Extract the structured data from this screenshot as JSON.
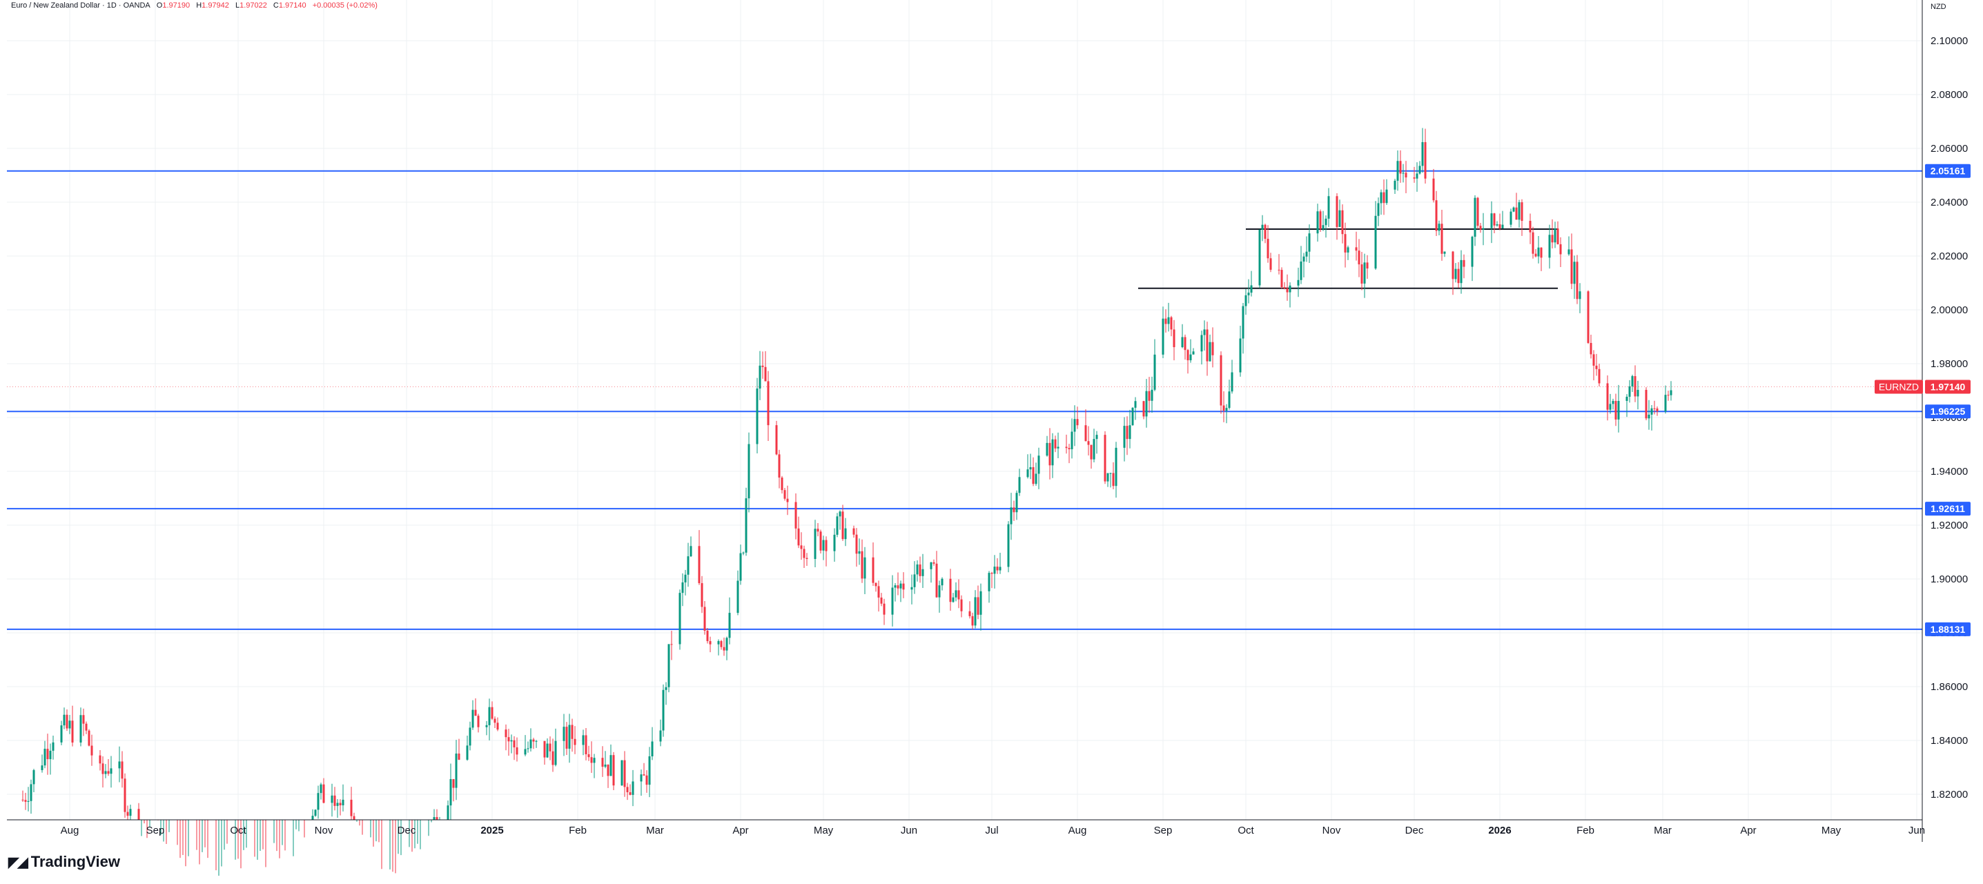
{
  "legend": {
    "symbol_title": "Euro / New Zealand Dollar · 1D · OANDA",
    "open_label": "O",
    "open_value": "1.97190",
    "high_label": "H",
    "high_value": "1.97942",
    "low_label": "L",
    "low_value": "1.97022",
    "close_label": "C",
    "close_value": "1.97140",
    "change": "+0.00035 (+0.02%)"
  },
  "currency_label": "NZD",
  "brand": "TradingView",
  "colors": {
    "up": "#089981",
    "down": "#f23645",
    "hline": "#2962ff",
    "channel": "#131722",
    "grid": "#eef0f3",
    "price_tag": "#f23645"
  },
  "chart_data": {
    "type": "candlestick",
    "symbol": "EURNZD",
    "ylim": [
      1.805,
      2.11
    ],
    "ytick_labels": [
      "1.82000",
      "1.84000",
      "1.86000",
      "1.88000",
      "1.90000",
      "1.92000",
      "1.94000",
      "1.96000",
      "1.98000",
      "2.00000",
      "2.02000",
      "2.04000",
      "2.06000",
      "2.08000",
      "2.10000"
    ],
    "x_months": [
      {
        "label": "Aug",
        "date": "2024-08-01"
      },
      {
        "label": "Sep",
        "date": "2024-09-01"
      },
      {
        "label": "Oct",
        "date": "2024-10-01"
      },
      {
        "label": "Nov",
        "date": "2024-11-01"
      },
      {
        "label": "Dec",
        "date": "2024-12-01"
      },
      {
        "label": "2025",
        "date": "2025-01-01",
        "bold": true
      },
      {
        "label": "Feb",
        "date": "2025-02-01"
      },
      {
        "label": "Mar",
        "date": "2025-03-01"
      },
      {
        "label": "Apr",
        "date": "2025-04-01"
      },
      {
        "label": "May",
        "date": "2025-05-01"
      },
      {
        "label": "Jun",
        "date": "2025-06-01"
      },
      {
        "label": "Jul",
        "date": "2025-07-01"
      },
      {
        "label": "Aug",
        "date": "2025-08-01"
      },
      {
        "label": "Sep",
        "date": "2025-09-01"
      },
      {
        "label": "Oct",
        "date": "2025-10-01"
      },
      {
        "label": "Nov",
        "date": "2025-11-01"
      },
      {
        "label": "Dec",
        "date": "2025-12-01"
      },
      {
        "label": "2026",
        "date": "2026-01-01",
        "bold": true
      },
      {
        "label": "Feb",
        "date": "2026-02-01"
      },
      {
        "label": "Mar",
        "date": "2026-03-01"
      },
      {
        "label": "Apr",
        "date": "2026-04-01"
      },
      {
        "label": "May",
        "date": "2026-05-01"
      },
      {
        "label": "Jun",
        "date": "2026-06-01"
      }
    ],
    "close_path": [
      {
        "date": "2024-07-15",
        "close": 1.818
      },
      {
        "date": "2024-07-26",
        "close": 1.843
      },
      {
        "date": "2024-08-06",
        "close": 1.845
      },
      {
        "date": "2024-08-12",
        "close": 1.826
      },
      {
        "date": "2024-08-17",
        "close": 1.834
      },
      {
        "date": "2024-08-24",
        "close": 1.808
      },
      {
        "date": "2024-09-02",
        "close": 1.798
      },
      {
        "date": "2024-10-01",
        "close": 1.79
      },
      {
        "date": "2024-10-20",
        "close": 1.793
      },
      {
        "date": "2024-10-28",
        "close": 1.815
      },
      {
        "date": "2024-11-04",
        "close": 1.824
      },
      {
        "date": "2024-11-10",
        "close": 1.808
      },
      {
        "date": "2024-11-25",
        "close": 1.786
      },
      {
        "date": "2024-12-05",
        "close": 1.797
      },
      {
        "date": "2024-12-15",
        "close": 1.818
      },
      {
        "date": "2024-12-25",
        "close": 1.846
      },
      {
        "date": "2025-01-01",
        "close": 1.853
      },
      {
        "date": "2025-01-08",
        "close": 1.838
      },
      {
        "date": "2025-01-22",
        "close": 1.836
      },
      {
        "date": "2025-02-01",
        "close": 1.843
      },
      {
        "date": "2025-02-15",
        "close": 1.828
      },
      {
        "date": "2025-02-24",
        "close": 1.822
      },
      {
        "date": "2025-03-02",
        "close": 1.84
      },
      {
        "date": "2025-03-07",
        "close": 1.878
      },
      {
        "date": "2025-03-14",
        "close": 1.91
      },
      {
        "date": "2025-03-20",
        "close": 1.88
      },
      {
        "date": "2025-03-27",
        "close": 1.878
      },
      {
        "date": "2025-04-02",
        "close": 1.91
      },
      {
        "date": "2025-04-05",
        "close": 1.965
      },
      {
        "date": "2025-04-09",
        "close": 1.98
      },
      {
        "date": "2025-04-12",
        "close": 1.953
      },
      {
        "date": "2025-04-16",
        "close": 1.928
      },
      {
        "date": "2025-04-25",
        "close": 1.912
      },
      {
        "date": "2025-05-08",
        "close": 1.92
      },
      {
        "date": "2025-05-22",
        "close": 1.89
      },
      {
        "date": "2025-06-05",
        "close": 1.905
      },
      {
        "date": "2025-06-16",
        "close": 1.894
      },
      {
        "date": "2025-06-26",
        "close": 1.887
      },
      {
        "date": "2025-07-03",
        "close": 1.905
      },
      {
        "date": "2025-07-10",
        "close": 1.935
      },
      {
        "date": "2025-07-20",
        "close": 1.945
      },
      {
        "date": "2025-07-30",
        "close": 1.955
      },
      {
        "date": "2025-08-08",
        "close": 1.948
      },
      {
        "date": "2025-08-13",
        "close": 1.937
      },
      {
        "date": "2025-08-20",
        "close": 1.958
      },
      {
        "date": "2025-08-27",
        "close": 1.968
      },
      {
        "date": "2025-09-02",
        "close": 1.999
      },
      {
        "date": "2025-09-08",
        "close": 1.985
      },
      {
        "date": "2025-09-16",
        "close": 1.989
      },
      {
        "date": "2025-09-24",
        "close": 1.962
      },
      {
        "date": "2025-10-02",
        "close": 2.008
      },
      {
        "date": "2025-10-06",
        "close": 2.03
      },
      {
        "date": "2025-10-12",
        "close": 2.016
      },
      {
        "date": "2025-10-19",
        "close": 2.006
      },
      {
        "date": "2025-10-25",
        "close": 2.03
      },
      {
        "date": "2025-11-01",
        "close": 2.042
      },
      {
        "date": "2025-11-06",
        "close": 2.025
      },
      {
        "date": "2025-11-13",
        "close": 2.014
      },
      {
        "date": "2025-11-18",
        "close": 2.036
      },
      {
        "date": "2025-11-22",
        "close": 2.055
      },
      {
        "date": "2025-11-28",
        "close": 2.044
      },
      {
        "date": "2025-12-04",
        "close": 2.061
      },
      {
        "date": "2025-12-06",
        "close": 2.048
      },
      {
        "date": "2025-12-10",
        "close": 2.027
      },
      {
        "date": "2025-12-17",
        "close": 2.013
      },
      {
        "date": "2025-12-23",
        "close": 2.036
      },
      {
        "date": "2026-01-02",
        "close": 2.026
      },
      {
        "date": "2026-01-08",
        "close": 2.039
      },
      {
        "date": "2026-01-14",
        "close": 2.02
      },
      {
        "date": "2026-01-22",
        "close": 2.029
      },
      {
        "date": "2026-01-29",
        "close": 2.01
      },
      {
        "date": "2026-02-03",
        "close": 1.985
      },
      {
        "date": "2026-02-08",
        "close": 1.97
      },
      {
        "date": "2026-02-12",
        "close": 1.96
      },
      {
        "date": "2026-02-18",
        "close": 1.974
      },
      {
        "date": "2026-02-25",
        "close": 1.96
      },
      {
        "date": "2026-03-04",
        "close": 1.9714
      }
    ],
    "horizontal_lines": [
      {
        "price": 2.05161,
        "label": "2.05161"
      },
      {
        "price": 1.96225,
        "label": "1.96225"
      },
      {
        "price": 1.92611,
        "label": "1.92611"
      },
      {
        "price": 1.88131,
        "label": "1.88131"
      }
    ],
    "channel_lines": [
      {
        "price": 2.03,
        "from": "2025-10-01",
        "to": "2026-01-22"
      },
      {
        "price": 2.008,
        "from": "2025-08-23",
        "to": "2026-01-22"
      }
    ],
    "last_price": {
      "symbol": "EURNZD",
      "price": 1.9714,
      "label": "1.97140"
    }
  }
}
